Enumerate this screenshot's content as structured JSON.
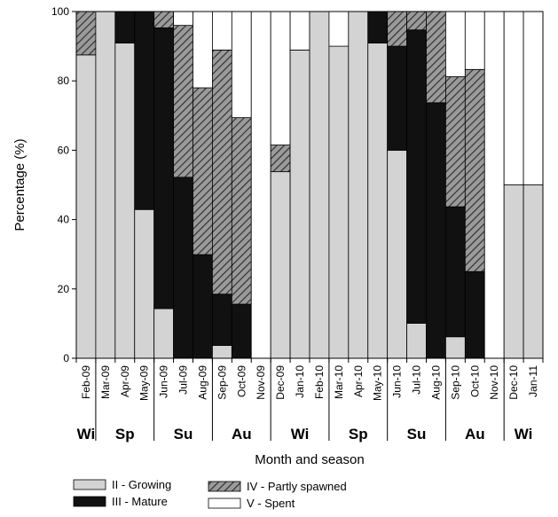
{
  "chart_data": {
    "type": "bar",
    "stacked": true,
    "xlabel": "Month and season",
    "ylabel": "Percentage (%)",
    "ylim": [
      0,
      100
    ],
    "yticks": [
      0,
      20,
      40,
      60,
      80,
      100
    ],
    "grid": false,
    "legend_position": "bottom",
    "categories": [
      "Feb-09",
      "Mar-09",
      "Apr-09",
      "May-09",
      "Jun-09",
      "Jul-09",
      "Aug-09",
      "Sep-09",
      "Oct-09",
      "Nov-09",
      "Dec-09",
      "Jan-10",
      "Feb-10",
      "Mar-10",
      "Apr-10",
      "May-10",
      "Jun-10",
      "Jul-10",
      "Aug-10",
      "Sep-10",
      "Oct-10",
      "Nov-10",
      "Dec-10",
      "Jan-11"
    ],
    "seasons": [
      {
        "label": "Wi",
        "start": 0,
        "end": 0
      },
      {
        "label": "Sp",
        "start": 1,
        "end": 3
      },
      {
        "label": "Su",
        "start": 4,
        "end": 6
      },
      {
        "label": "Au",
        "start": 7,
        "end": 9
      },
      {
        "label": "Wi",
        "start": 10,
        "end": 12
      },
      {
        "label": "Sp",
        "start": 13,
        "end": 15
      },
      {
        "label": "Su",
        "start": 16,
        "end": 18
      },
      {
        "label": "Au",
        "start": 19,
        "end": 21
      },
      {
        "label": "Wi",
        "start": 22,
        "end": 23
      }
    ],
    "series": [
      {
        "name": "II - Growing",
        "color": "#d3d3d3",
        "pattern": "none",
        "values": [
          87.5,
          100,
          90.9,
          42.9,
          14.3,
          0,
          0,
          3.7,
          0,
          0,
          53.8,
          88.9,
          100,
          90,
          100,
          90.9,
          60,
          10.1,
          0,
          6.2,
          0,
          0,
          50,
          50
        ]
      },
      {
        "name": "III - Mature",
        "color": "#111111",
        "pattern": "none",
        "values": [
          0,
          0,
          9.1,
          57.1,
          81,
          52.2,
          29.9,
          14.8,
          15.6,
          0,
          0,
          0,
          0,
          0,
          0,
          9.1,
          30,
          84.6,
          73.7,
          37.5,
          25,
          0,
          0,
          0
        ]
      },
      {
        "name": "IV - Partly spawned",
        "color": "#9a9a9a",
        "pattern": "hatch",
        "values": [
          12.5,
          0,
          0,
          0,
          4.7,
          43.8,
          48.1,
          70.4,
          53.8,
          0,
          7.7,
          0,
          0,
          0,
          0,
          0,
          10,
          5.3,
          26.3,
          37.5,
          58.3,
          0,
          0,
          0
        ]
      },
      {
        "name": "V - Spent",
        "color": "#ffffff",
        "pattern": "none",
        "values": [
          0,
          0,
          0,
          0,
          0,
          4,
          22,
          11.1,
          30.6,
          100,
          38.5,
          11.1,
          0,
          10,
          0,
          0,
          0,
          0,
          0,
          18.8,
          16.7,
          100,
          50,
          50
        ]
      }
    ]
  }
}
